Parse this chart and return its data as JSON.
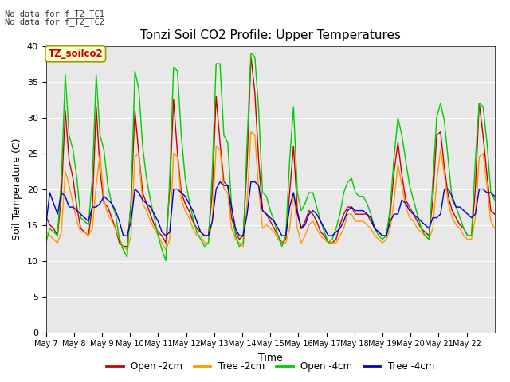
{
  "title": "Tonzi Soil CO2 Profile: Upper Temperatures",
  "xlabel": "Time",
  "ylabel": "Soil Temperature (C)",
  "ylim": [
    0,
    40
  ],
  "background_color": "#e8e8e8",
  "annotations": [
    "No data for f_T2_TC1",
    "No data for f_T2_TC2"
  ],
  "legend_label": "TZ_soilco2",
  "series_labels": [
    "Open -2cm",
    "Tree -2cm",
    "Open -4cm",
    "Tree -4cm"
  ],
  "series_colors": [
    "#cc0000",
    "#ff9900",
    "#00cc00",
    "#0000cc"
  ],
  "xtick_labels": [
    "May 7",
    "May 8",
    "May 9",
    "May 10",
    "May 11",
    "May 12",
    "May 13",
    "May 14",
    "May 15",
    "May 16",
    "May 17",
    "May 18",
    "May 19",
    "May 20",
    "May 21",
    "May 22"
  ],
  "ytick_values": [
    0,
    5,
    10,
    15,
    20,
    25,
    30,
    35,
    40
  ],
  "open_2cm": [
    16.2,
    15.0,
    14.5,
    13.5,
    19.0,
    31.0,
    24.0,
    21.5,
    17.5,
    14.5,
    14.0,
    13.5,
    17.5,
    31.5,
    22.5,
    18.0,
    17.5,
    16.0,
    14.5,
    12.5,
    12.0,
    12.0,
    18.0,
    31.0,
    25.0,
    19.5,
    18.0,
    16.5,
    15.0,
    14.0,
    13.5,
    12.5,
    20.0,
    32.5,
    25.0,
    19.5,
    18.0,
    17.0,
    15.5,
    14.5,
    14.0,
    13.5,
    13.5,
    19.5,
    33.0,
    26.5,
    21.0,
    20.5,
    16.0,
    14.0,
    13.0,
    13.5,
    23.5,
    38.5,
    33.5,
    24.0,
    17.0,
    16.5,
    15.5,
    14.5,
    13.5,
    12.5,
    13.0,
    19.5,
    26.0,
    17.0,
    14.5,
    15.5,
    17.0,
    16.5,
    15.5,
    14.0,
    13.5,
    12.5,
    12.5,
    13.0,
    15.0,
    16.5,
    17.5,
    17.5,
    16.5,
    16.5,
    16.5,
    16.5,
    15.5,
    14.5,
    14.0,
    13.5,
    13.5,
    16.5,
    22.5,
    26.5,
    22.0,
    18.5,
    17.5,
    16.5,
    15.5,
    14.5,
    14.0,
    13.5,
    18.5,
    27.5,
    28.0,
    23.0,
    19.0,
    17.0,
    16.0,
    15.0,
    14.5,
    13.5,
    13.5,
    20.0,
    32.0,
    27.5,
    22.0,
    17.0,
    16.5
  ],
  "tree_2cm": [
    14.0,
    13.5,
    13.0,
    12.5,
    14.0,
    22.5,
    20.5,
    18.0,
    15.5,
    14.0,
    14.0,
    13.5,
    14.5,
    20.5,
    25.0,
    18.5,
    16.5,
    15.5,
    14.5,
    13.0,
    12.0,
    11.5,
    13.5,
    24.5,
    25.0,
    18.0,
    17.0,
    15.5,
    14.5,
    13.5,
    12.5,
    11.5,
    13.0,
    25.0,
    24.5,
    18.5,
    17.0,
    16.0,
    14.5,
    13.5,
    13.5,
    12.5,
    12.5,
    15.5,
    26.0,
    25.5,
    20.0,
    19.5,
    14.5,
    13.0,
    12.5,
    12.0,
    18.0,
    28.0,
    27.5,
    20.0,
    14.5,
    15.0,
    14.5,
    14.0,
    13.0,
    12.5,
    12.5,
    14.5,
    19.5,
    14.5,
    12.5,
    13.5,
    15.0,
    15.5,
    14.5,
    13.5,
    13.0,
    12.5,
    12.5,
    12.5,
    13.5,
    14.5,
    16.5,
    16.5,
    15.5,
    15.5,
    15.5,
    15.0,
    14.5,
    13.5,
    13.0,
    12.5,
    13.0,
    14.5,
    18.5,
    23.5,
    20.5,
    17.5,
    16.0,
    15.5,
    14.5,
    14.0,
    13.5,
    13.0,
    14.5,
    21.0,
    25.5,
    22.0,
    18.0,
    16.0,
    15.0,
    14.5,
    13.5,
    13.0,
    13.0,
    16.0,
    24.5,
    25.0,
    20.5,
    15.5,
    14.5
  ],
  "open_4cm": [
    12.5,
    14.5,
    14.0,
    13.5,
    21.5,
    36.0,
    27.5,
    25.5,
    21.5,
    16.0,
    15.5,
    15.0,
    21.5,
    36.0,
    27.5,
    25.5,
    20.5,
    18.0,
    16.5,
    13.0,
    11.5,
    10.5,
    18.5,
    36.5,
    34.0,
    26.0,
    21.5,
    18.5,
    16.0,
    13.5,
    11.5,
    10.0,
    21.5,
    37.0,
    36.5,
    27.5,
    21.5,
    18.5,
    16.0,
    14.0,
    13.0,
    12.0,
    12.5,
    22.5,
    37.5,
    37.5,
    27.5,
    26.5,
    17.5,
    13.5,
    12.0,
    12.5,
    26.5,
    39.0,
    38.5,
    31.0,
    19.5,
    19.0,
    17.0,
    15.5,
    13.5,
    12.0,
    13.5,
    24.0,
    31.5,
    19.5,
    17.0,
    18.0,
    19.5,
    19.5,
    17.5,
    15.5,
    14.0,
    12.5,
    13.0,
    14.5,
    16.5,
    19.5,
    21.0,
    21.5,
    19.5,
    19.0,
    19.0,
    18.0,
    16.5,
    14.5,
    13.5,
    13.0,
    13.5,
    17.5,
    24.5,
    30.0,
    27.5,
    24.0,
    20.5,
    18.5,
    16.5,
    14.5,
    13.5,
    13.0,
    21.0,
    30.0,
    32.0,
    29.5,
    24.0,
    18.5,
    17.5,
    16.0,
    14.5,
    13.5,
    13.5,
    24.0,
    32.0,
    31.5,
    26.5,
    19.5,
    18.5
  ],
  "tree_4cm": [
    15.0,
    19.5,
    18.0,
    16.5,
    19.5,
    19.0,
    17.5,
    17.5,
    17.0,
    16.5,
    16.0,
    15.5,
    17.5,
    17.5,
    18.0,
    19.0,
    18.5,
    18.0,
    17.0,
    15.5,
    13.5,
    13.5,
    15.5,
    20.0,
    19.5,
    18.5,
    18.0,
    17.5,
    16.5,
    15.5,
    14.0,
    13.5,
    14.0,
    20.0,
    20.0,
    19.5,
    19.0,
    18.0,
    17.0,
    15.5,
    14.0,
    13.5,
    13.5,
    15.5,
    20.0,
    21.0,
    20.5,
    20.5,
    17.5,
    14.5,
    13.5,
    13.5,
    16.5,
    21.0,
    21.0,
    20.5,
    17.0,
    16.5,
    16.0,
    15.5,
    14.5,
    13.5,
    13.5,
    17.5,
    19.5,
    16.5,
    14.5,
    15.0,
    16.5,
    17.0,
    16.5,
    15.5,
    14.5,
    13.5,
    13.5,
    14.0,
    14.5,
    15.5,
    17.0,
    17.5,
    17.0,
    17.0,
    17.0,
    16.5,
    16.0,
    14.5,
    14.0,
    13.5,
    13.5,
    15.5,
    16.5,
    16.5,
    18.5,
    18.0,
    17.0,
    16.5,
    16.0,
    15.5,
    15.0,
    14.5,
    16.0,
    16.0,
    16.5,
    20.0,
    20.0,
    19.0,
    17.5,
    17.5,
    17.0,
    16.5,
    16.0,
    16.5,
    20.0,
    20.0,
    19.5,
    19.5,
    19.0
  ]
}
